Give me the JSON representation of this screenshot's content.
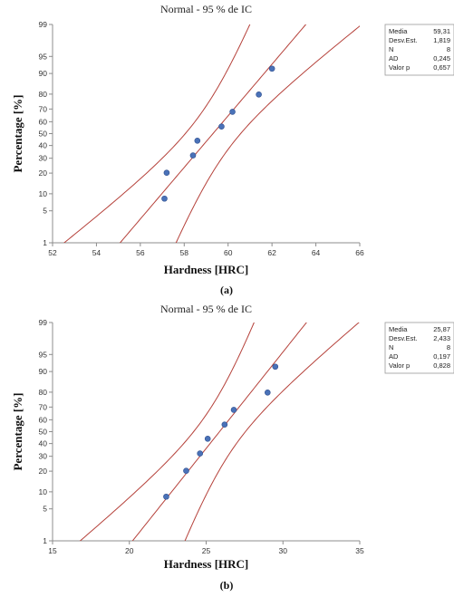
{
  "chart_data": [
    {
      "type": "scatter",
      "title": "Normal - 95 % de IC",
      "xlabel": "Hardness [HRC]",
      "ylabel": "Percentage [%]",
      "caption": "(a)",
      "xlim": [
        52,
        66
      ],
      "xticks": [
        52,
        54,
        56,
        58,
        60,
        62,
        64,
        66
      ],
      "ylim": [
        1,
        99
      ],
      "yscale": "normal-probability",
      "yticks": [
        1,
        5,
        10,
        20,
        30,
        40,
        50,
        60,
        70,
        80,
        90,
        95,
        99
      ],
      "grid": false,
      "points": [
        {
          "x": 57.1,
          "y": 8.3
        },
        {
          "x": 57.2,
          "y": 20.2
        },
        {
          "x": 58.4,
          "y": 32.1
        },
        {
          "x": 58.6,
          "y": 44.0
        },
        {
          "x": 59.7,
          "y": 56.0
        },
        {
          "x": 60.2,
          "y": 67.9
        },
        {
          "x": 61.4,
          "y": 79.8
        },
        {
          "x": 62.0,
          "y": 91.7
        }
      ],
      "fit": {
        "mean": 59.31,
        "sd": 1.819,
        "n": 8
      },
      "ci_level": 0.95,
      "stats": [
        {
          "label": "Media",
          "value": "59,31"
        },
        {
          "label": "Desv.Est.",
          "value": "1,819"
        },
        {
          "label": "N",
          "value": "8"
        },
        {
          "label": "AD",
          "value": "0,245"
        },
        {
          "label": "Valor p",
          "value": "0,657"
        }
      ],
      "colors": {
        "points": "#4a72b8",
        "lines": "#b5413a",
        "axis": "#8c8c8c"
      }
    },
    {
      "type": "scatter",
      "title": "Normal - 95 % de IC",
      "xlabel": "Hardness [HRC]",
      "ylabel": "Percentage [%]",
      "caption": "(b)",
      "xlim": [
        15,
        35
      ],
      "xticks": [
        15,
        20,
        25,
        30,
        35
      ],
      "ylim": [
        1,
        99
      ],
      "yscale": "normal-probability",
      "yticks": [
        1,
        5,
        10,
        20,
        30,
        40,
        50,
        60,
        70,
        80,
        90,
        95,
        99
      ],
      "grid": false,
      "points": [
        {
          "x": 22.4,
          "y": 8.3
        },
        {
          "x": 23.7,
          "y": 20.2
        },
        {
          "x": 24.6,
          "y": 32.1
        },
        {
          "x": 25.1,
          "y": 44.0
        },
        {
          "x": 26.2,
          "y": 56.0
        },
        {
          "x": 26.8,
          "y": 67.9
        },
        {
          "x": 29.0,
          "y": 79.8
        },
        {
          "x": 29.5,
          "y": 91.7
        }
      ],
      "fit": {
        "mean": 25.87,
        "sd": 2.433,
        "n": 8
      },
      "ci_level": 0.95,
      "stats": [
        {
          "label": "Media",
          "value": "25,87"
        },
        {
          "label": "Desv.Est.",
          "value": "2,433"
        },
        {
          "label": "N",
          "value": "8"
        },
        {
          "label": "AD",
          "value": "0,197"
        },
        {
          "label": "Valor p",
          "value": "0,828"
        }
      ],
      "colors": {
        "points": "#4a72b8",
        "lines": "#b5413a",
        "axis": "#8c8c8c"
      }
    }
  ]
}
